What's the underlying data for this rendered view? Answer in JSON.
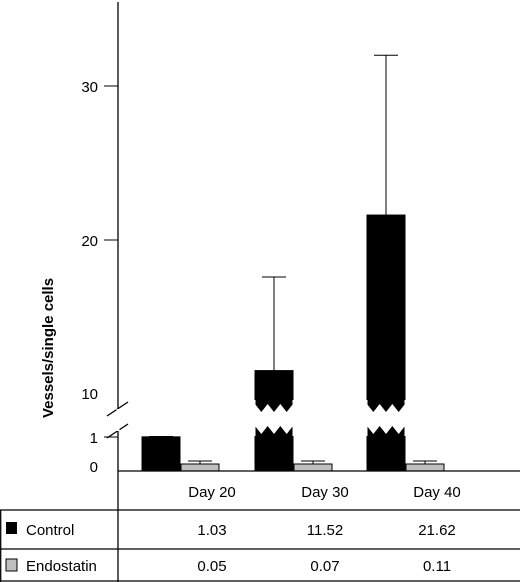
{
  "chart_data": {
    "type": "bar",
    "ylabel": "Vessels/single cells",
    "y_axis_break": true,
    "y_ticks_lower": [
      0,
      1
    ],
    "y_ticks_upper": [
      10,
      20,
      30
    ],
    "ylim_upper": [
      10,
      35
    ],
    "categories": [
      "Day 20",
      "Day 30",
      "Day 40"
    ],
    "series": [
      {
        "name": "Control",
        "color": "#000000",
        "values": [
          1.03,
          11.52,
          21.62
        ],
        "error_upper": [
          1.1,
          17.6,
          32.0
        ]
      },
      {
        "name": "Endostatin",
        "color": "#bfbfbf",
        "values": [
          0.05,
          0.07,
          0.11
        ],
        "error_upper": [
          0.1,
          0.12,
          0.18
        ]
      }
    ],
    "table": {
      "rows": [
        {
          "label": "Control",
          "cells": [
            "1.03",
            "11.52",
            "21.62"
          ]
        },
        {
          "label": "Endostatin",
          "cells": [
            "0.05",
            "0.07",
            "0.11"
          ]
        }
      ]
    }
  }
}
